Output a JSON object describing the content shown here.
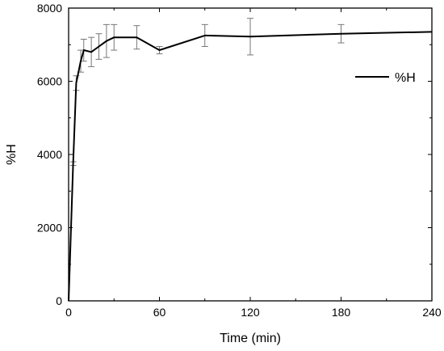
{
  "chart_data": {
    "type": "line",
    "xlabel": "Time (min)",
    "ylabel": "%H",
    "xlim": [
      0,
      240
    ],
    "ylim": [
      0,
      8000
    ],
    "x_ticks": [
      0,
      60,
      120,
      180,
      240
    ],
    "y_ticks": [
      0,
      2000,
      4000,
      6000,
      8000
    ],
    "x_tick_labels": [
      "0",
      "60",
      "120",
      "180",
      "240"
    ],
    "y_tick_labels": [
      "0",
      "2000",
      "4000",
      "6000",
      "8000"
    ],
    "grid": false,
    "legend": {
      "position": "top-right",
      "entries": [
        "%H"
      ]
    },
    "series": [
      {
        "name": "%H",
        "color": "#000000",
        "x": [
          0,
          3,
          5,
          8,
          10,
          15,
          20,
          25,
          30,
          45,
          60,
          90,
          120,
          180,
          240
        ],
        "y": [
          0,
          3750,
          5950,
          6550,
          6850,
          6800,
          6950,
          7100,
          7200,
          7200,
          6850,
          7250,
          7220,
          7300,
          7350
        ],
        "error": [
          0,
          50,
          200,
          300,
          300,
          400,
          350,
          450,
          350,
          320,
          100,
          300,
          500,
          250,
          0
        ]
      }
    ]
  }
}
